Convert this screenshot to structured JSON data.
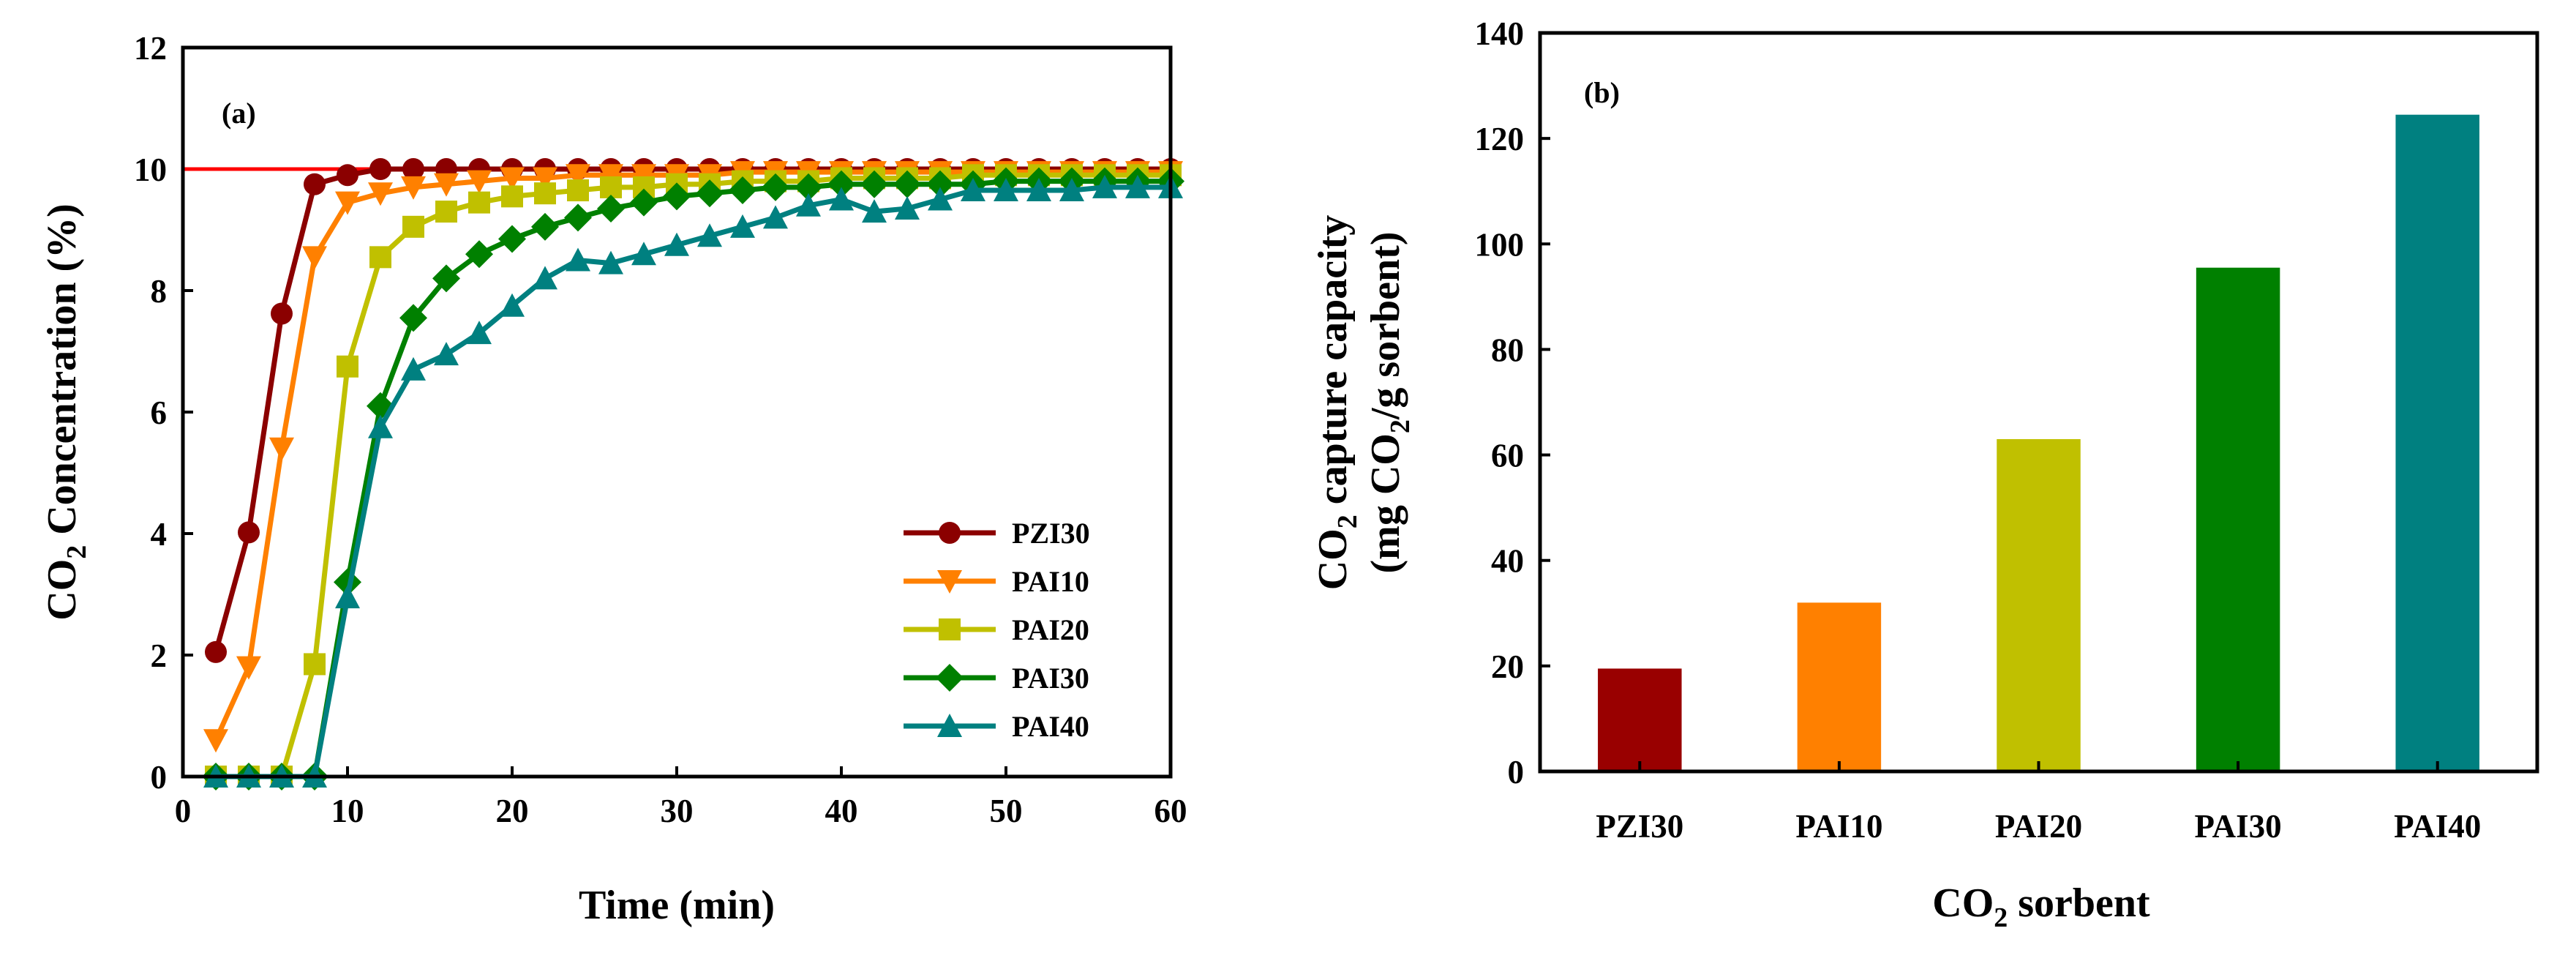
{
  "chart_data": [
    {
      "panel": "(a)",
      "type": "line",
      "xlabel": "Time (min)",
      "ylabel": "CO2 Concentration (%)",
      "ylabel_parts": {
        "pre": "CO",
        "sub": "2",
        "post": " Concentration (%)"
      },
      "xlim": [
        0,
        60
      ],
      "ylim": [
        0,
        12
      ],
      "xticks": [
        0,
        10,
        20,
        30,
        40,
        50,
        60
      ],
      "yticks": [
        0,
        2,
        4,
        6,
        8,
        10,
        12
      ],
      "reference_line": {
        "y": 10,
        "color": "#ff0000"
      },
      "legend_position": "lower-right",
      "x": [
        2,
        4,
        6,
        8,
        10,
        12,
        14,
        16,
        18,
        20,
        22,
        24,
        26,
        28,
        30,
        32,
        34,
        36,
        38,
        40,
        42,
        44,
        46,
        48,
        50,
        52,
        54,
        56,
        58,
        60
      ],
      "series": [
        {
          "name": "PZI30",
          "color": "#8b0000",
          "marker": "circle",
          "values": [
            2.05,
            4.02,
            7.62,
            9.75,
            9.9,
            10.0,
            10.0,
            10.0,
            10.0,
            10.0,
            10.0,
            10.0,
            10.0,
            10.0,
            10.0,
            10.0,
            10.0,
            10.0,
            10.0,
            10.0,
            10.0,
            10.0,
            10.0,
            10.0,
            10.0,
            10.0,
            10.0,
            10.0,
            10.0,
            10.0
          ]
        },
        {
          "name": "PAI10",
          "color": "#ff8000",
          "marker": "triangle-down",
          "values": [
            0.6,
            1.8,
            5.4,
            8.55,
            9.45,
            9.6,
            9.7,
            9.75,
            9.8,
            9.85,
            9.85,
            9.9,
            9.9,
            9.9,
            9.9,
            9.9,
            9.95,
            9.95,
            9.95,
            9.95,
            9.95,
            9.95,
            9.95,
            9.95,
            9.95,
            9.95,
            9.95,
            9.95,
            9.95,
            9.95
          ]
        },
        {
          "name": "PAI20",
          "color": "#c0c000",
          "marker": "square",
          "values": [
            0.0,
            0.0,
            0.0,
            1.85,
            6.75,
            8.55,
            9.05,
            9.3,
            9.45,
            9.55,
            9.6,
            9.65,
            9.7,
            9.7,
            9.75,
            9.75,
            9.8,
            9.8,
            9.8,
            9.85,
            9.85,
            9.85,
            9.85,
            9.9,
            9.9,
            9.9,
            9.9,
            9.9,
            9.9,
            9.9
          ]
        },
        {
          "name": "PAI30",
          "color": "#008000",
          "marker": "diamond",
          "values": [
            0.0,
            0.0,
            0.0,
            0.0,
            3.2,
            6.1,
            7.55,
            8.2,
            8.6,
            8.85,
            9.05,
            9.2,
            9.35,
            9.45,
            9.55,
            9.6,
            9.65,
            9.7,
            9.7,
            9.75,
            9.75,
            9.75,
            9.75,
            9.75,
            9.8,
            9.8,
            9.8,
            9.8,
            9.8,
            9.8
          ]
        },
        {
          "name": "PAI40",
          "color": "#008080",
          "marker": "triangle-up",
          "values": [
            0.0,
            0.0,
            0.0,
            0.0,
            2.95,
            5.75,
            6.7,
            6.95,
            7.3,
            7.75,
            8.2,
            8.5,
            8.45,
            8.6,
            8.75,
            8.9,
            9.05,
            9.2,
            9.4,
            9.5,
            9.3,
            9.35,
            9.5,
            9.65,
            9.65,
            9.65,
            9.65,
            9.7,
            9.7,
            9.7
          ]
        }
      ]
    },
    {
      "panel": "(b)",
      "type": "bar",
      "xlabel": "CO2 sorbent",
      "xlabel_parts": {
        "pre": "CO",
        "sub": "2",
        "post": " sorbent"
      },
      "ylabel": "CO2 capture capacity (mg CO2/g sorbent)",
      "ylabel_line1": {
        "pre": "CO",
        "sub": "2",
        "post": " capture capacity"
      },
      "ylabel_line2": {
        "pre": "(mg CO",
        "sub": "2",
        "post": "/g sorbent)"
      },
      "ylim": [
        0,
        140
      ],
      "yticks": [
        0,
        20,
        40,
        60,
        80,
        100,
        120,
        140
      ],
      "categories": [
        "PZI30",
        "PAI10",
        "PAI20",
        "PAI30",
        "PAI40"
      ],
      "values": [
        19.5,
        32,
        63,
        95.5,
        124.5
      ],
      "colors": [
        "#990000",
        "#ff8000",
        "#c0c000",
        "#008000",
        "#008080"
      ]
    }
  ]
}
